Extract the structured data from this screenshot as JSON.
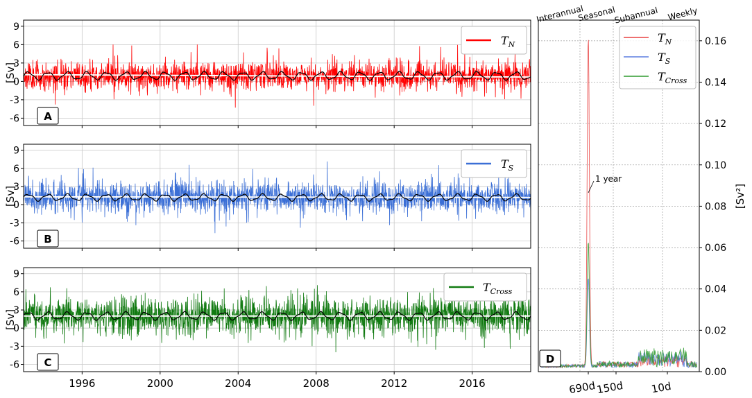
{
  "chart_data": [
    {
      "panel": "A",
      "type": "line",
      "xlabel": "",
      "ylabel": "[Sv]",
      "xlim": [
        1993,
        2019
      ],
      "ylim": [
        -7.2,
        10
      ],
      "yticks": [
        -6,
        -3,
        0,
        3,
        6,
        9
      ],
      "xticks": [
        1996,
        2000,
        2004,
        2008,
        2012,
        2016
      ],
      "legend": "top-right",
      "grid": true,
      "series": [
        {
          "name": "T",
          "sub": "N",
          "color": "#ff0000",
          "kind": "daily-transport",
          "mean": 0.9,
          "spread": 1.4,
          "min": -6.5,
          "max": 6.0
        },
        {
          "name": "",
          "color": "#000000",
          "kind": "low-pass",
          "mean": 0.9,
          "amplitude": 0.6
        },
        {
          "name": "",
          "color": "#ffffff",
          "kind": "trend",
          "start": 1.1,
          "end": 0.7
        }
      ]
    },
    {
      "panel": "B",
      "type": "line",
      "xlabel": "",
      "ylabel": "[Sv]",
      "xlim": [
        1993,
        2019
      ],
      "ylim": [
        -7.2,
        10
      ],
      "yticks": [
        -6,
        -3,
        0,
        3,
        6,
        9
      ],
      "xticks": [
        1996,
        2000,
        2004,
        2008,
        2012,
        2016
      ],
      "legend": "top-right",
      "grid": true,
      "series": [
        {
          "name": "T",
          "sub": "S",
          "color": "#3b6fd6",
          "kind": "daily-transport",
          "mean": 1.2,
          "spread": 1.6,
          "min": -4.7,
          "max": 8.4
        },
        {
          "name": "",
          "color": "#000000",
          "kind": "low-pass",
          "mean": 1.2,
          "amplitude": 0.5
        },
        {
          "name": "",
          "color": "#ffffff",
          "kind": "trend",
          "start": 1.3,
          "end": 1.2
        }
      ]
    },
    {
      "panel": "C",
      "type": "line",
      "xlabel": "",
      "ylabel": "[Sv]",
      "xlim": [
        1993,
        2019
      ],
      "ylim": [
        -7.2,
        10
      ],
      "yticks": [
        -6,
        -3,
        0,
        3,
        6,
        9
      ],
      "xticks": [
        1996,
        2000,
        2004,
        2008,
        2012,
        2016
      ],
      "xticklabels": [
        "1996",
        "2000",
        "2004",
        "2008",
        "2012",
        "2016"
      ],
      "legend": "top-right",
      "grid": true,
      "series": [
        {
          "name": "T",
          "sub": "Cross",
          "color": "#117a11",
          "kind": "daily-transport",
          "mean": 2.0,
          "spread": 1.9,
          "min": -6.3,
          "max": 9.2
        },
        {
          "name": "",
          "color": "#000000",
          "kind": "low-pass",
          "mean": 2.0,
          "amplitude": 0.6
        },
        {
          "name": "",
          "color": "#ffffff",
          "kind": "trend",
          "start": 2.0,
          "end": 2.0
        }
      ]
    },
    {
      "panel": "D",
      "type": "line",
      "xlabel": "",
      "ylabel": "[Sv²]",
      "ylim": [
        0,
        0.17
      ],
      "yticks": [
        0.0,
        0.02,
        0.04,
        0.06,
        0.08,
        0.1,
        0.12,
        0.14,
        0.16
      ],
      "yticklabels": [
        "0.00",
        "0.02",
        "0.04",
        "0.06",
        "0.08",
        "0.10",
        "0.12",
        "0.14",
        "0.16"
      ],
      "xticklabels": [
        "690d",
        "150d",
        "10d"
      ],
      "bands": [
        "Interannual",
        "Seasonal",
        "Subannual",
        "Weekly"
      ],
      "annotation": "1 year",
      "legend": "top-right",
      "grid": true,
      "series": [
        {
          "name": "T",
          "sub": "N",
          "color": "#e84040",
          "peak": 0.16
        },
        {
          "name": "T",
          "sub": "S",
          "color": "#5b7fe0",
          "peak": 0.043
        },
        {
          "name": "T",
          "sub": "Cross",
          "color": "#2e9a2e",
          "peak": 0.06
        }
      ]
    }
  ]
}
